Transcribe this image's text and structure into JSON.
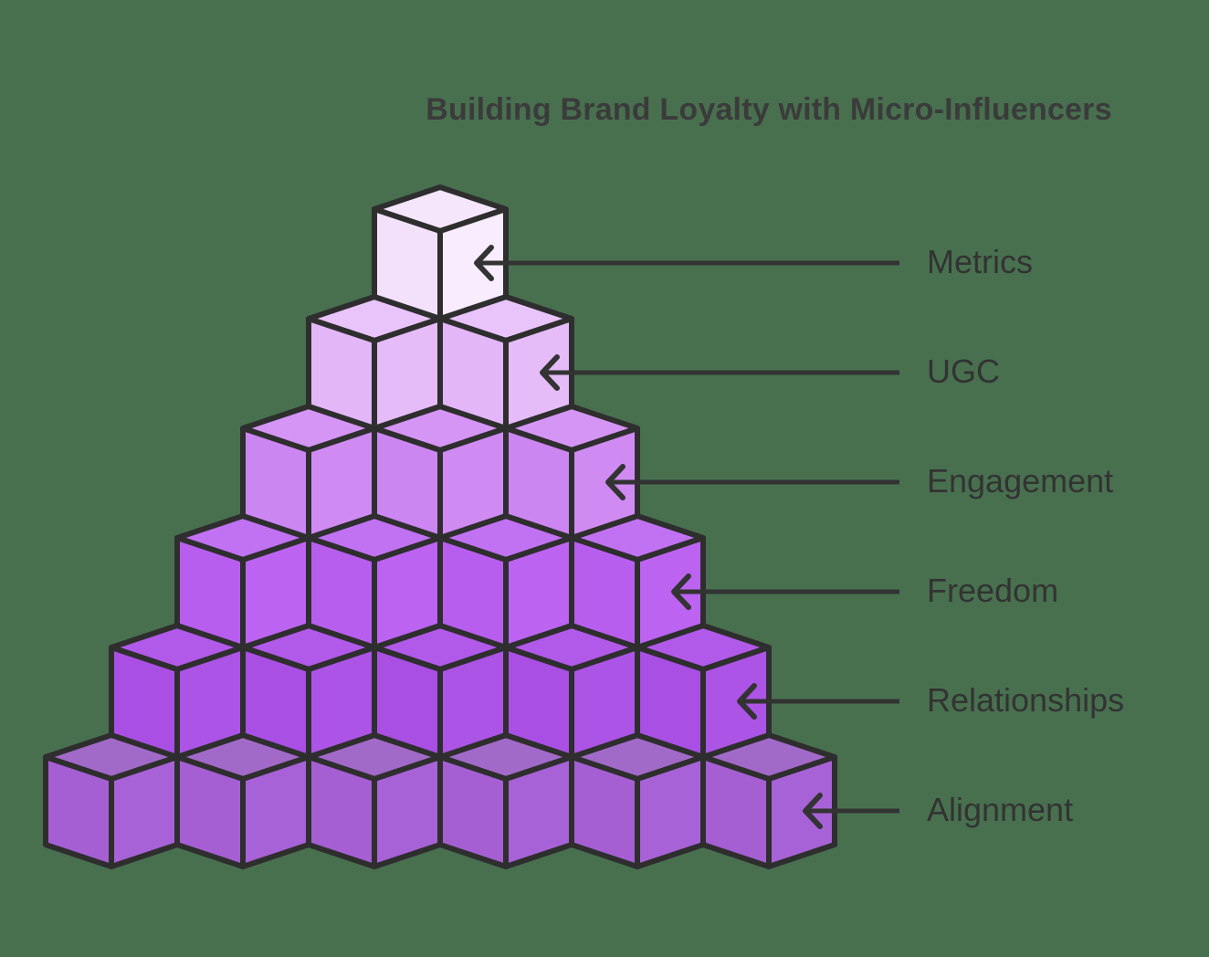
{
  "title": "Building Brand Loyalty with Micro-Influencers",
  "colors": {
    "background": "#48704f",
    "outline": "#2e2e2e",
    "title_text": "#3b3b3b",
    "label_text": "#333333",
    "arrow": "#333333"
  },
  "pyramid": {
    "type": "isometric-cube-pyramid",
    "levels": [
      {
        "label": "Metrics",
        "cubes": 1,
        "faces": {
          "top": "#f5e6fc",
          "left": "#f3e1fb",
          "right": "#f8ecfe"
        }
      },
      {
        "label": "UGC",
        "cubes": 2,
        "faces": {
          "top": "#e8c4fa",
          "left": "#e2b6f7",
          "right": "#e5bcf8"
        }
      },
      {
        "label": "Engagement",
        "cubes": 3,
        "faces": {
          "top": "#d595f5",
          "left": "#cc86f1",
          "right": "#d08bf3"
        }
      },
      {
        "label": "Freedom",
        "cubes": 4,
        "faces": {
          "top": "#c172f3",
          "left": "#b85eef",
          "right": "#bc64f1"
        }
      },
      {
        "label": "Relationships",
        "cubes": 5,
        "faces": {
          "top": "#b159e9",
          "left": "#a94fe4",
          "right": "#ac54e6"
        }
      },
      {
        "label": "Alignment",
        "cubes": 6,
        "faces": {
          "top": "#a26ac8",
          "left": "#a55fd3",
          "right": "#a862d7"
        }
      }
    ]
  }
}
